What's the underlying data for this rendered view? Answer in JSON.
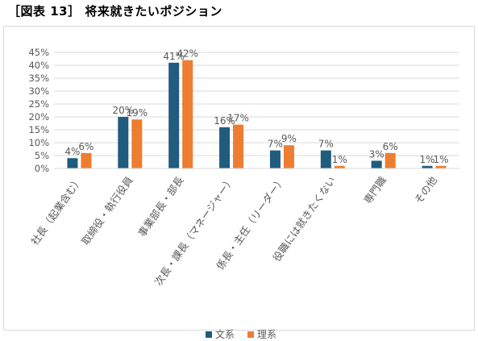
{
  "title": "［図表 13］ 将来就きたいポジション",
  "colors": {
    "bunkei": "#1f5c7e",
    "rikei": "#ed7d31",
    "grid": "#d9d9d9",
    "text": "#595959"
  },
  "legend": [
    {
      "name": "文系",
      "color": "#1f5c7e"
    },
    {
      "name": "理系",
      "color": "#ed7d31"
    }
  ],
  "chart_data": {
    "type": "bar",
    "title": "",
    "xlabel": "",
    "ylabel": "",
    "ylim": [
      0,
      45
    ],
    "y_ticks": [
      "0%",
      "5%",
      "10%",
      "15%",
      "20%",
      "25%",
      "30%",
      "35%",
      "40%",
      "45%"
    ],
    "grid": true,
    "legend_position": "bottom",
    "categories": [
      "社長（起業含む）",
      "取締役・執行役員",
      "事業部長・部長",
      "次長・課長（マネージャー）",
      "係長・主任（リーダー）",
      "役職には就きたくない",
      "専門職",
      "その他"
    ],
    "series": [
      {
        "name": "文系",
        "values": [
          4,
          20,
          41,
          16,
          7,
          7,
          3,
          1
        ],
        "labels": [
          "4%",
          "20%",
          "41%",
          "16%",
          "7%",
          "7%",
          "3%",
          "1%"
        ]
      },
      {
        "name": "理系",
        "values": [
          6,
          19,
          42,
          17,
          9,
          1,
          6,
          1
        ],
        "labels": [
          "6%",
          "19%",
          "42%",
          "17%",
          "9%",
          "1%",
          "6%",
          "1%"
        ]
      }
    ]
  }
}
